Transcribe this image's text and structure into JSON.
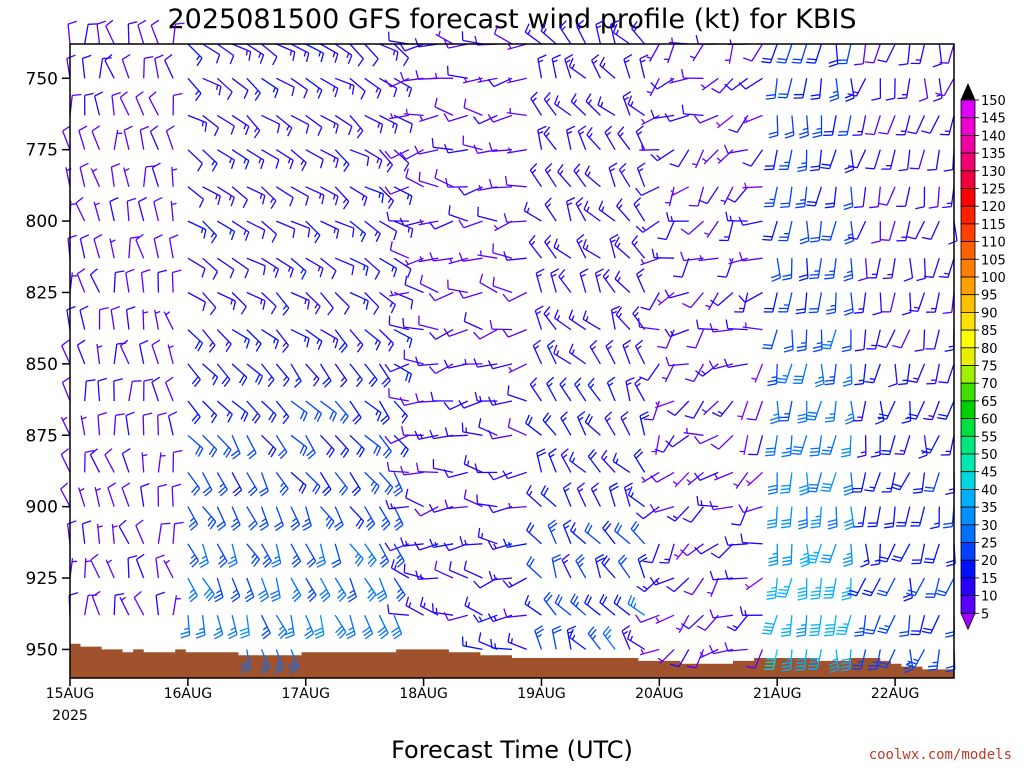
{
  "chart_data": {
    "type": "wind-barb-profile",
    "title": "2025081500 GFS forecast wind profile (kt) for KBIS",
    "xlabel": "Forecast Time (UTC)",
    "credit": "coolwx.com/models",
    "units": "kt",
    "y_axis": {
      "type": "pressure",
      "range": [
        738,
        960
      ],
      "ticks": [
        750,
        775,
        800,
        825,
        850,
        875,
        900,
        925,
        950
      ],
      "levels": [
        738,
        750,
        763,
        775,
        788,
        800,
        813,
        825,
        838,
        850,
        863,
        875,
        888,
        900,
        913,
        925,
        938,
        950
      ]
    },
    "x_axis": {
      "type": "time",
      "start": "2025-08-15T00",
      "end": "2025-08-22T12",
      "step_hours": 3,
      "ticks": [
        {
          "label": "15AUG",
          "year": "2025",
          "t": "2025-08-15T00"
        },
        {
          "label": "16AUG",
          "t": "2025-08-16T00"
        },
        {
          "label": "17AUG",
          "t": "2025-08-17T00"
        },
        {
          "label": "18AUG",
          "t": "2025-08-18T00"
        },
        {
          "label": "19AUG",
          "t": "2025-08-19T00"
        },
        {
          "label": "20AUG",
          "t": "2025-08-20T00"
        },
        {
          "label": "21AUG",
          "t": "2025-08-21T00"
        },
        {
          "label": "22AUG",
          "t": "2025-08-22T00"
        }
      ]
    },
    "legend": {
      "position": "right",
      "values": [
        5,
        10,
        15,
        20,
        25,
        30,
        35,
        40,
        45,
        50,
        55,
        60,
        65,
        70,
        75,
        80,
        85,
        90,
        95,
        100,
        105,
        110,
        115,
        120,
        125,
        130,
        135,
        140,
        145,
        150
      ],
      "colors": [
        "#8000ff",
        "#5a00ff",
        "#2800ff",
        "#0010ff",
        "#0040ff",
        "#0070ff",
        "#0090ff",
        "#00b0ff",
        "#00d8e0",
        "#00e8b0",
        "#00e880",
        "#00e040",
        "#00d000",
        "#40e000",
        "#a0f000",
        "#e8f000",
        "#ffff00",
        "#ffe000",
        "#ffc000",
        "#ffa000",
        "#ff8000",
        "#ff6000",
        "#ff4000",
        "#ff2000",
        "#ff0000",
        "#f00040",
        "#f00070",
        "#f000a0",
        "#f000d0",
        "#e000ff"
      ],
      "top_cap": "#000000",
      "bottom_cap": "#a000ff"
    },
    "terrain": {
      "color": "#a0522d",
      "surface_pressure": [
        948,
        949,
        949,
        950,
        950,
        951,
        950,
        951,
        951,
        951,
        950,
        951,
        951,
        951,
        951,
        951,
        952,
        952,
        952,
        952,
        952,
        952,
        951,
        951,
        951,
        951,
        951,
        951,
        951,
        951,
        951,
        950,
        950,
        950,
        950,
        950,
        951,
        951,
        951,
        952,
        952,
        952,
        953,
        953,
        953,
        953,
        953,
        953,
        953,
        953,
        953,
        953,
        953,
        953,
        954,
        954,
        954,
        954,
        955,
        955,
        955,
        955,
        955,
        954,
        954,
        953,
        953,
        953,
        953,
        953,
        953,
        954,
        954,
        954,
        953,
        953,
        953,
        954,
        955,
        956,
        956,
        957,
        957,
        957
      ]
    }
  }
}
